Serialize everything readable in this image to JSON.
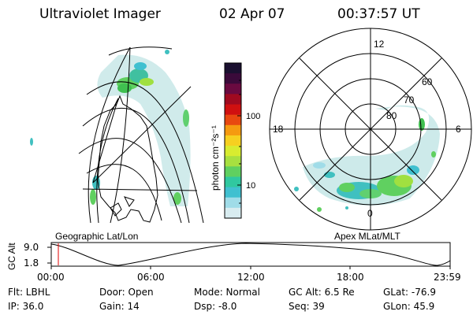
{
  "header": {
    "instrument": "Ultraviolet Imager",
    "date": "02 Apr 07",
    "time": "00:37:57 UT"
  },
  "colorbar": {
    "label": "photon cm⁻²s⁻¹",
    "tick_high": "100",
    "tick_low": "10",
    "colors_top_to_bottom": [
      "#1a1030",
      "#3a0a3a",
      "#6a0a40",
      "#a00a20",
      "#d01010",
      "#e84810",
      "#f59a10",
      "#f6d020",
      "#d8ec30",
      "#a8e040",
      "#60d060",
      "#30c8a0",
      "#40c0d0",
      "#a0dce8",
      "#d8ecf0"
    ]
  },
  "geo_panel": {
    "label": "Geographic Lat/Lon"
  },
  "polar_panel": {
    "label": "Apex MLat/MLT",
    "mlt_top": "12",
    "mlt_left": "18",
    "mlt_right": "6",
    "mlt_bottom": "0",
    "lat_labels": [
      "60",
      "70",
      "80"
    ]
  },
  "timeline": {
    "y_title": "GC Alt",
    "y_high": "9.0",
    "y_low": "1.8",
    "x_ticks": [
      "00:00",
      "06:00",
      "12:00",
      "18:00",
      "23:59"
    ]
  },
  "info": {
    "flt": "Flt: LBHL",
    "ip": "IP: 36.0",
    "door": "Door: Open",
    "gain": "Gain: 14",
    "mode": "Mode: Normal",
    "dsp": "Dsp:   -8.0",
    "gc_alt": "GC Alt: 6.5 Re",
    "seq": "Seq: 39",
    "glat": "GLat: -76.9",
    "glon": "GLon:  45.9"
  },
  "accent_colors": {
    "aurora_green": "#40c050",
    "aurora_cyan": "#40d0c0",
    "aurora_pale": "#c8e8e8",
    "marker_red": "#e00000"
  }
}
